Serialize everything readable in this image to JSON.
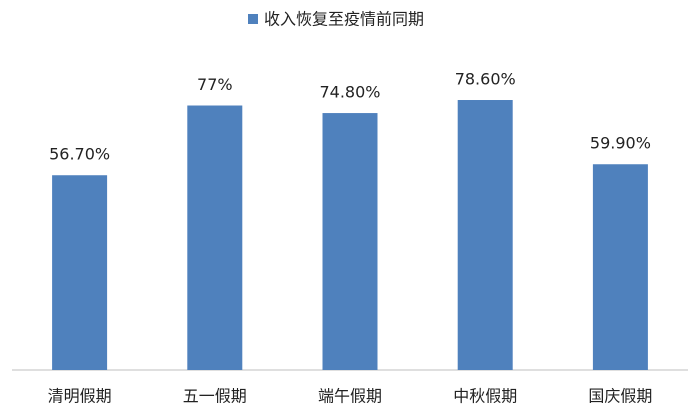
{
  "chart_data": {
    "type": "bar",
    "categories": [
      "清明假期",
      "五一假期",
      "端午假期",
      "中秋假期",
      "国庆假期"
    ],
    "series": [
      {
        "name": "收入恢复至疫情前同期",
        "color": "#4f81bd",
        "values": [
          56.7,
          77,
          74.8,
          78.6,
          59.9
        ],
        "value_labels": [
          "56.70%",
          "77%",
          "74.80%",
          "78.60%",
          "59.90%"
        ]
      }
    ],
    "legend": "top"
  }
}
